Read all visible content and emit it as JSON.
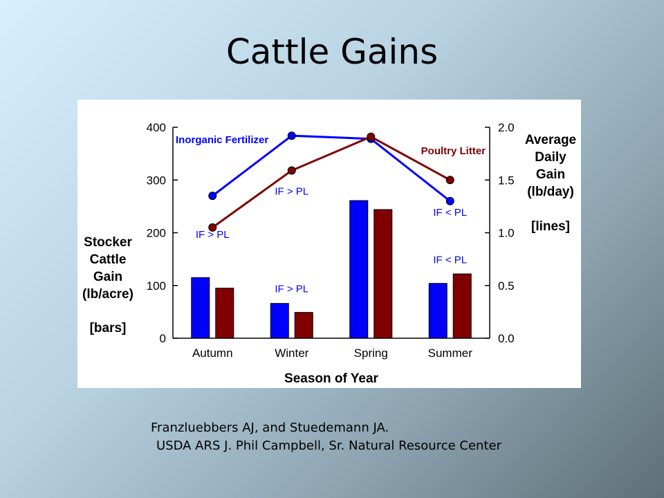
{
  "slide": {
    "title": "Cattle Gains",
    "citation_line_1": "Franzluebbers AJ, and Stuedemann JA.",
    "citation_line_2": "USDA ARS J. Phil Campbell, Sr. Natural Resource Center"
  },
  "chart_data": {
    "type": "bar",
    "title": "",
    "xlabel": "Season of Year",
    "categories": [
      "Autumn",
      "Winter",
      "Spring",
      "Summer"
    ],
    "y_left": {
      "label_lines": [
        "Stocker",
        "Cattle",
        "Gain",
        "(lb/acre)"
      ],
      "label_note": "[bars]",
      "ylim": [
        0,
        400
      ],
      "ticks": [
        "0",
        "100",
        "200",
        "300",
        "400"
      ]
    },
    "y_right": {
      "label_lines": [
        "Average",
        "Daily",
        "Gain",
        "(lb/day)"
      ],
      "label_note": "[lines]",
      "ylim": [
        0.0,
        2.0
      ],
      "ticks": [
        "0.0",
        "0.5",
        "1.0",
        "1.5",
        "2.0"
      ]
    },
    "bar_series": [
      {
        "key": "if",
        "values": [
          115,
          66,
          261,
          104
        ],
        "color": "#0000ff"
      },
      {
        "key": "pl",
        "values": [
          95,
          49,
          244,
          122
        ],
        "color": "#800000"
      }
    ],
    "line_series": [
      {
        "name": "Inorganic Fertilizer",
        "values": [
          1.35,
          1.92,
          1.89,
          1.3
        ],
        "color": "#0000ff"
      },
      {
        "name": "Poultry Litter",
        "values": [
          1.05,
          1.59,
          1.91,
          1.5
        ],
        "color": "#800000"
      }
    ],
    "annotations": [
      {
        "text": "IF > PL",
        "category": "Autumn",
        "axis": "right",
        "value": 0.95
      },
      {
        "text": "IF > PL",
        "category": "Winter",
        "axis": "right",
        "value": 1.36
      },
      {
        "text": "IF < PL",
        "category": "Summer",
        "axis": "right",
        "value": 1.16
      },
      {
        "text": "IF > PL",
        "category": "Winter",
        "axis": "left",
        "value": 87
      },
      {
        "text": "IF < PL",
        "category": "Summer",
        "axis": "left",
        "value": 142
      }
    ],
    "colors": {
      "annotation": "#0000ff",
      "axis": "#000000"
    }
  }
}
